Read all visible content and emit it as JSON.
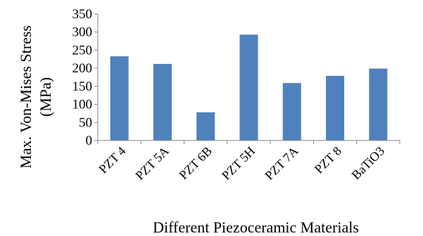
{
  "chart_data": {
    "type": "bar",
    "categories": [
      "PZT 4",
      "PZT 5A",
      "PZT 6B",
      "PZT 5H",
      "PZT 7A",
      "PZT 8",
      "BaTiO3"
    ],
    "values": [
      233,
      212,
      78,
      293,
      159,
      179,
      199
    ],
    "xlabel": "Different Piezoceramic Materials",
    "ylabel_line1": "Max. Von-Mises Stress",
    "ylabel_line2": "(MPa)",
    "ylim": [
      0,
      350
    ],
    "yticks": [
      0,
      50,
      100,
      150,
      200,
      250,
      300,
      350
    ],
    "grid": false,
    "legend": "none",
    "bar_color": "#4f81bd",
    "axis_color": "#868686"
  }
}
